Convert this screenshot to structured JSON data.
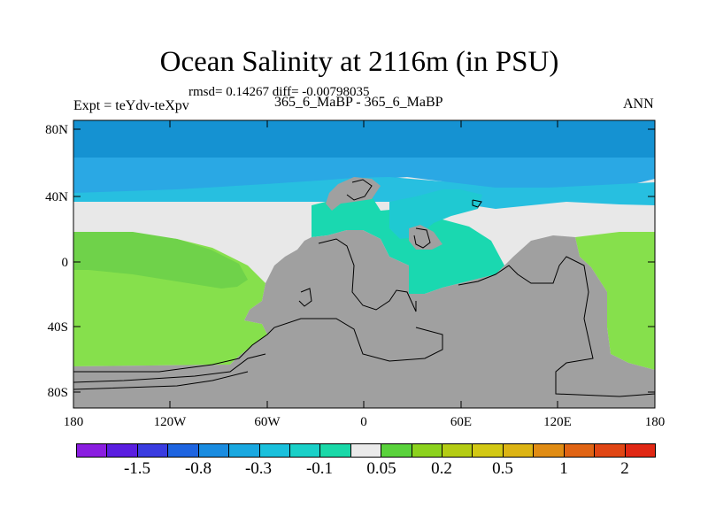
{
  "header": {
    "title": "Ocean Salinity at 2116m (in PSU)",
    "stats": "rmsd= 0.14267 diff= -0.00798035",
    "case": "365_6_MaBP - 365_6_MaBP",
    "expt": "Expt = teYdv-teXpv",
    "season": "ANN"
  },
  "map": {
    "y_ticks": [
      "80N",
      "40N",
      "0",
      "40S",
      "80S"
    ],
    "x_ticks": [
      "180",
      "120W",
      "60W",
      "0",
      "60E",
      "120E",
      "180"
    ],
    "colors": {
      "land": "#a0a0a0",
      "neutral": "#e8e8e8",
      "deep_blue": "#1592d2",
      "mid_blue": "#2aa8e4",
      "light_blue": "#27bfe0",
      "cyan": "#1fc9d2",
      "teal": "#1ad8b0",
      "light_green": "#86e04c",
      "green": "#6fd24a"
    }
  },
  "colorbar": {
    "labels": [
      "-1.5",
      "-0.8",
      "-0.3",
      "-0.1",
      "0.05",
      "0.2",
      "0.5",
      "1",
      "2"
    ],
    "colors": [
      "#8a1ee0",
      "#5a1ee0",
      "#3a3ce0",
      "#1e64e0",
      "#1a8ce0",
      "#1aa8e0",
      "#1ac0dc",
      "#1ad0c8",
      "#1ad8a8",
      "#eaeaea",
      "#5ad23c",
      "#8cd21e",
      "#b4cc14",
      "#d2c814",
      "#dcb414",
      "#e08c14",
      "#e06414",
      "#e04614",
      "#e02814"
    ]
  }
}
